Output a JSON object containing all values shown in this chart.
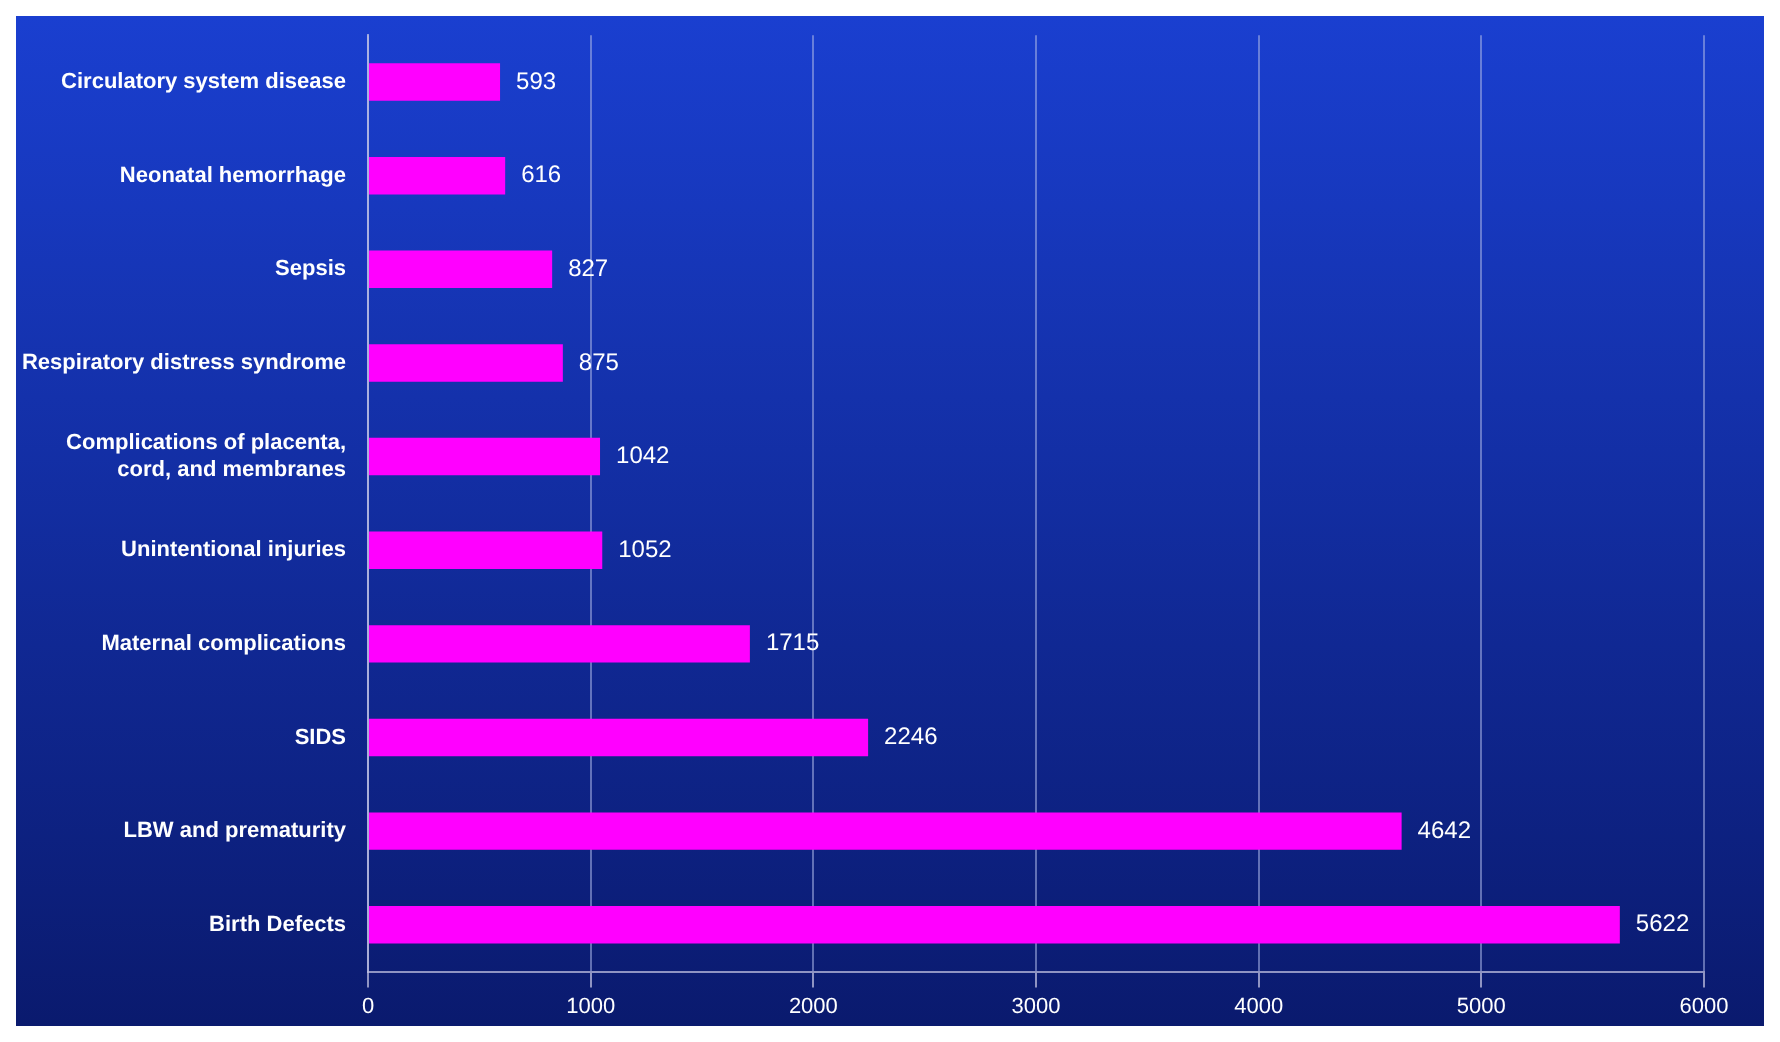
{
  "chart_data": {
    "type": "bar",
    "orientation": "horizontal",
    "categories": [
      "Circulatory system disease",
      "Neonatal hemorrhage",
      "Sepsis",
      "Respiratory distress syndrome",
      "Complications of placenta,\ncord, and membranes",
      "Unintentional injuries",
      "Maternal complications",
      "SIDS",
      "LBW and prematurity",
      "Birth Defects"
    ],
    "values": [
      593,
      616,
      827,
      875,
      1042,
      1052,
      1715,
      2246,
      4642,
      5622
    ],
    "color": "#ff00ff",
    "xlim": [
      0,
      6000
    ],
    "xticks": [
      0,
      1000,
      2000,
      3000,
      4000,
      5000,
      6000
    ],
    "grid": "x",
    "data_labels": true,
    "legend": false
  }
}
